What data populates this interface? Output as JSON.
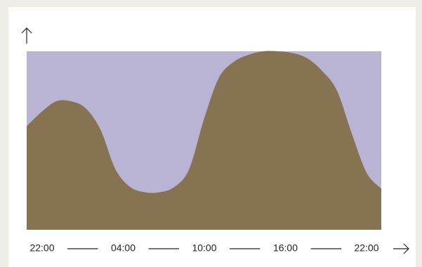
{
  "chart_data": {
    "type": "area",
    "categories": [
      "22:00",
      null,
      null,
      null,
      null,
      null,
      "04:00",
      null,
      null,
      null,
      null,
      null,
      "10:00",
      null,
      null,
      null,
      null,
      null,
      "16:00",
      null,
      null,
      null,
      null,
      null,
      "22:00"
    ],
    "values": [
      58,
      66,
      72,
      72,
      68,
      56,
      34,
      24,
      21,
      21,
      24,
      34,
      62,
      85,
      94,
      98,
      100,
      100,
      99,
      96,
      89,
      78,
      54,
      32,
      23
    ],
    "ylim": [
      0,
      100
    ],
    "color": "#857352",
    "background": "#b9b3d4"
  }
}
